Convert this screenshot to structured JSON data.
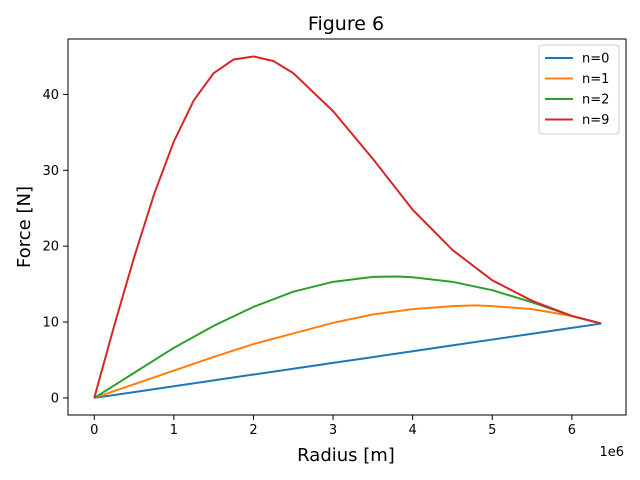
{
  "chart_data": {
    "type": "line",
    "title": "Figure 6",
    "xlabel": "Radius [m]",
    "ylabel": "Force [N]",
    "x_offset_text": "1e6",
    "xlim": [
      -0.33,
      6.68
    ],
    "ylim": [
      -2.25,
      47.3
    ],
    "xticks": [
      0,
      1,
      2,
      3,
      4,
      5,
      6
    ],
    "yticks": [
      0,
      10,
      20,
      30,
      40
    ],
    "grid": false,
    "legend_position": "upper right",
    "series": [
      {
        "name": "n=0",
        "color": "#1f77b4",
        "x": [
          0,
          0.5,
          1,
          1.5,
          2,
          2.5,
          3,
          3.5,
          4,
          4.5,
          5,
          5.5,
          6,
          6.37
        ],
        "y": [
          0,
          0.77,
          1.54,
          2.31,
          3.08,
          3.85,
          4.62,
          5.38,
          6.15,
          6.92,
          7.69,
          8.46,
          9.23,
          9.8
        ]
      },
      {
        "name": "n=1",
        "color": "#ff7f0e",
        "x": [
          0,
          0.5,
          1,
          1.5,
          2,
          2.5,
          3,
          3.5,
          4,
          4.5,
          4.78,
          5,
          5.5,
          6,
          6.37
        ],
        "y": [
          0,
          1.8,
          3.6,
          5.4,
          7.1,
          8.5,
          9.9,
          11.0,
          11.7,
          12.1,
          12.2,
          12.1,
          11.7,
          10.8,
          9.8
        ]
      },
      {
        "name": "n=2",
        "color": "#2ca02c",
        "x": [
          0,
          0.5,
          1,
          1.5,
          2,
          2.5,
          3,
          3.5,
          3.8,
          4,
          4.5,
          5,
          5.5,
          6,
          6.37
        ],
        "y": [
          0,
          3.3,
          6.6,
          9.5,
          12.0,
          14.0,
          15.3,
          15.95,
          16.0,
          15.9,
          15.3,
          14.2,
          12.6,
          10.8,
          9.8
        ]
      },
      {
        "name": "n=9",
        "color": "#d62728",
        "x": [
          0,
          0.25,
          0.5,
          0.75,
          1,
          1.25,
          1.5,
          1.75,
          2,
          2.25,
          2.5,
          3,
          3.5,
          4,
          4.5,
          5,
          5.5,
          6,
          6.37
        ],
        "y": [
          0,
          9.5,
          18.5,
          26.8,
          33.8,
          39.2,
          42.8,
          44.6,
          45.0,
          44.4,
          42.8,
          37.8,
          31.5,
          24.8,
          19.5,
          15.5,
          12.8,
          10.8,
          9.8
        ]
      }
    ]
  }
}
